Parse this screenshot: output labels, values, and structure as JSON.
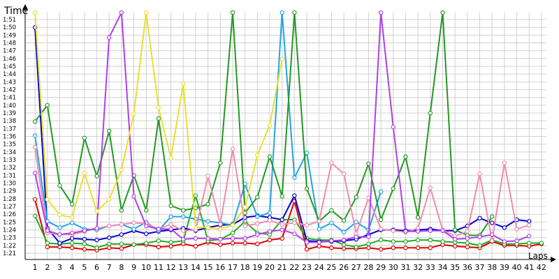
{
  "chart_data": {
    "type": "line",
    "title": "",
    "xlabel": "Laps",
    "ylabel": "Time",
    "grid": true,
    "legend": "none",
    "x_ticks": [
      "1",
      "2",
      "3",
      "4",
      "5",
      "6",
      "7",
      "8",
      "9",
      "10",
      "11",
      "12",
      "13",
      "14",
      "15",
      "16",
      "17",
      "18",
      "19",
      "20",
      "21",
      "22",
      "23",
      "24",
      "25",
      "26",
      "27",
      "28",
      "29",
      "30",
      "31",
      "32",
      "33",
      "34",
      "35",
      "36",
      "37",
      "38",
      "39",
      "40",
      "41",
      "42"
    ],
    "y_ticks": [
      "1:21",
      "1:22",
      "1:23",
      "1:24",
      "1:25",
      "1:26",
      "1:27",
      "1:28",
      "1:29",
      "1:30",
      "1:31",
      "1:32",
      "1:33",
      "1:34",
      "1:35",
      "1:36",
      "1:37",
      "1:38",
      "1:39",
      "1:40",
      "1:41",
      "1:42",
      "1:43",
      "1:44",
      "1:45",
      "1:46",
      "1:47",
      "1:48",
      "1:49",
      "1:50",
      "1:51"
    ],
    "ylim": [
      80.2,
      111.9
    ],
    "xlim": [
      0.2,
      42.4
    ],
    "series": [
      {
        "color": "#dd0000",
        "x": [
          1,
          2,
          3,
          4,
          5,
          6,
          7,
          8,
          9,
          10,
          11,
          12,
          13,
          14,
          15,
          16,
          17,
          18,
          19,
          20,
          21,
          22,
          23,
          24,
          25,
          26,
          27,
          28,
          29,
          30,
          31,
          32,
          33,
          34,
          35,
          36,
          37,
          38,
          39,
          40,
          41,
          42
        ],
        "y": [
          87.9,
          81.8,
          81.8,
          81.7,
          81.5,
          81.4,
          81.7,
          81.6,
          82.1,
          82.1,
          81.8,
          81.9,
          82.2,
          81.9,
          82.4,
          82.1,
          82.3,
          82.3,
          82.2,
          82.7,
          82.9,
          87.7,
          81.5,
          81.9,
          81.7,
          81.6,
          81.6,
          81.7,
          81.5,
          81.7,
          81.7,
          81.7,
          81.7,
          82.1,
          81.9,
          81.8,
          81.7,
          82.5,
          82.0,
          82.0,
          81.9,
          82.2
        ]
      },
      {
        "color": "#22aa22",
        "x": [
          1,
          2,
          3,
          4,
          5,
          6,
          7,
          8,
          9,
          10,
          11,
          12,
          13,
          14,
          15,
          16,
          17,
          18,
          19,
          20,
          21,
          22,
          23,
          24,
          25,
          26,
          27,
          28,
          29,
          30,
          31,
          32,
          33,
          34,
          35,
          36,
          37,
          38,
          39,
          40,
          41,
          42
        ],
        "y": [
          85.8,
          82.3,
          82.2,
          82.3,
          82.2,
          81.7,
          82.2,
          82.2,
          82.1,
          82.3,
          82.6,
          82.4,
          82.6,
          88.4,
          82.6,
          82.8,
          83.6,
          85.1,
          83.6,
          83.4,
          85.3,
          85.3,
          82.9,
          82.7,
          82.7,
          82.1,
          81.8,
          82.2,
          82.7,
          82.5,
          82.5,
          82.7,
          82.7,
          82.5,
          82.4,
          82.3,
          82.0,
          82.7,
          82.2,
          82.2,
          82.3,
          82.3
        ]
      },
      {
        "color": "#0000cc",
        "x": [
          1,
          2,
          3,
          4,
          5,
          6,
          7,
          8,
          9,
          10,
          11,
          12,
          13,
          14,
          15,
          16,
          17,
          18,
          19,
          20,
          21,
          22,
          23,
          24,
          25,
          26,
          27,
          28,
          29,
          30,
          31,
          32,
          33,
          34,
          35,
          36,
          37,
          38,
          39,
          40,
          41
        ],
        "y": [
          110.0,
          84.2,
          82.3,
          82.9,
          82.8,
          82.7,
          83.0,
          83.4,
          83.9,
          83.5,
          83.8,
          84.0,
          84.2,
          83.9,
          84.3,
          84.6,
          84.7,
          85.6,
          85.8,
          85.6,
          85.3,
          88.4,
          82.6,
          82.5,
          82.5,
          82.6,
          82.8,
          83.4,
          84.0,
          84.0,
          83.9,
          84.0,
          84.1,
          83.9,
          83.9,
          84.5,
          85.5,
          84.9,
          84.3,
          85.3,
          85.1
        ]
      },
      {
        "color": "#22a3e6",
        "x": [
          1,
          2,
          3,
          4,
          5,
          6,
          7,
          8,
          9,
          10,
          11,
          12,
          13,
          14,
          15,
          16,
          17,
          18,
          19,
          20,
          21,
          22,
          23,
          24,
          25,
          26,
          27,
          28,
          29
        ],
        "y": [
          96.1,
          85.1,
          84.3,
          84.9,
          84.1,
          84.0,
          84.5,
          84.7,
          84.1,
          85.0,
          83.9,
          85.7,
          85.7,
          85.4,
          85.1,
          84.9,
          84.6,
          89.9,
          85.7,
          86.2,
          111.9,
          90.7,
          93.9,
          84.1,
          84.9,
          83.7,
          85.0,
          84.0,
          88.9
        ]
      },
      {
        "color": "#229922",
        "x": [
          1,
          2,
          3,
          4,
          5,
          6,
          7,
          8,
          9,
          10,
          11,
          12,
          13,
          14,
          15,
          16,
          17,
          18,
          19,
          20,
          21,
          22,
          23,
          24,
          25,
          26,
          27,
          28,
          29,
          30,
          31,
          32,
          33,
          34,
          35,
          36,
          37,
          38
        ],
        "y": [
          97.9,
          100.0,
          89.7,
          87.3,
          95.8,
          90.9,
          96.7,
          86.5,
          91.0,
          86.5,
          98.3,
          87.1,
          86.5,
          86.8,
          87.3,
          92.6,
          111.9,
          86.2,
          88.2,
          93.4,
          88.3,
          111.9,
          89.3,
          85.1,
          86.5,
          85.2,
          88.2,
          92.5,
          85.3,
          89.3,
          93.4,
          85.6,
          99.0,
          111.9,
          84.0,
          83.3,
          83.3,
          85.7
        ]
      },
      {
        "color": "#f08cb0",
        "x": [
          1,
          2,
          3,
          4,
          5,
          6,
          7,
          8,
          9,
          10,
          11,
          12,
          13,
          14,
          15,
          16,
          17,
          18,
          19,
          20,
          21,
          22,
          23,
          24,
          25,
          26,
          27,
          28,
          29,
          30,
          31,
          32,
          33,
          34,
          35,
          36,
          37,
          38,
          39,
          40,
          41
        ],
        "y": [
          94.6,
          83.6,
          83.4,
          83.4,
          83.8,
          84.2,
          84.5,
          84.7,
          84.9,
          84.8,
          84.1,
          84.7,
          83.9,
          84.0,
          90.9,
          84.7,
          94.4,
          84.5,
          84.8,
          85.2,
          84.7,
          84.9,
          84.6,
          85.1,
          92.6,
          91.2,
          83.5,
          88.1,
          84.1,
          83.9,
          83.7,
          84.2,
          89.4,
          84.0,
          83.2,
          83.8,
          91.2,
          82.6,
          92.6,
          84.1,
          84.6
        ]
      },
      {
        "color": "#b040e8",
        "x": [
          1,
          2,
          3,
          4,
          5,
          6,
          7,
          8,
          9,
          10,
          11,
          12,
          13,
          14,
          15,
          16,
          17,
          18,
          19,
          20,
          21,
          22,
          23,
          24,
          25,
          26,
          27,
          28,
          29,
          30,
          31,
          32,
          33,
          34,
          35,
          36,
          37,
          38,
          39,
          40,
          41
        ],
        "y": [
          91.3,
          83.9,
          83.4,
          83.6,
          83.9,
          84.2,
          108.7,
          111.9,
          88.3,
          84.5,
          84.1,
          84.1,
          82.8,
          82.9,
          82.9,
          82.8,
          82.9,
          82.9,
          83.4,
          83.8,
          84.0,
          83.5,
          82.4,
          82.4,
          82.6,
          82.7,
          83.1,
          83.1,
          111.9,
          97.2,
          83.8,
          83.8,
          83.9,
          83.9,
          82.8,
          82.9,
          83.1,
          83.4,
          82.5,
          82.6,
          83.2
        ]
      },
      {
        "color": "#e8e030",
        "x": [
          1,
          2,
          3,
          4,
          5,
          6,
          7,
          8,
          9,
          10,
          11,
          12,
          13,
          14,
          15,
          16,
          17,
          18,
          19,
          20,
          21
        ],
        "y": [
          111.9,
          87.9,
          85.9,
          85.6,
          91.3,
          86.4,
          87.9,
          91.7,
          98.9,
          111.9,
          99.7,
          93.2,
          102.8,
          84.3,
          84.3,
          84.1,
          84.6,
          86.9,
          93.6,
          97.4,
          105.9
        ]
      }
    ]
  }
}
